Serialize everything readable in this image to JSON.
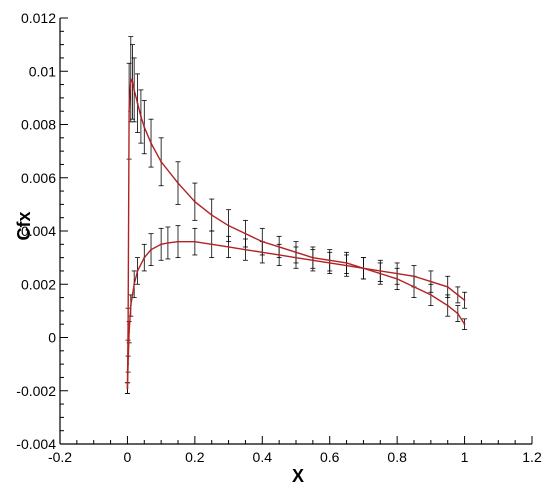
{
  "chart_data": {
    "type": "line",
    "title": "",
    "xlabel": "X",
    "ylabel": "Cfx",
    "xlim": [
      -0.2,
      1.2
    ],
    "ylim": [
      -0.004,
      0.012
    ],
    "xticks": [
      "-0.2",
      "0",
      "0.2",
      "0.4",
      "0.6",
      "0.8",
      "1",
      "1.2"
    ],
    "yticks": [
      "-0.004",
      "-0.002",
      "0",
      "0.002",
      "0.004",
      "0.006",
      "0.008",
      "0.01",
      "0.012"
    ],
    "grid": false,
    "legend": "none",
    "colors": {
      "line": "#b22222",
      "error_bar": "#000000"
    },
    "series": [
      {
        "x": [
          0.0,
          0.002,
          0.005,
          0.01,
          0.015,
          0.02,
          0.03,
          0.04,
          0.05,
          0.07,
          0.1,
          0.15,
          0.2,
          0.25,
          0.3,
          0.35,
          0.4,
          0.45,
          0.5,
          0.55,
          0.6,
          0.65,
          0.7,
          0.75,
          0.8,
          0.85,
          0.9,
          0.95,
          0.98,
          1.0
        ],
        "y": [
          -0.0019,
          0.0005,
          0.0085,
          0.0097,
          0.0096,
          0.0093,
          0.0088,
          0.0083,
          0.0079,
          0.0073,
          0.0066,
          0.0058,
          0.0051,
          0.0046,
          0.0042,
          0.0039,
          0.0036,
          0.0034,
          0.0032,
          0.003,
          0.0029,
          0.0028,
          0.0026,
          0.0025,
          0.0024,
          0.0023,
          0.0021,
          0.0019,
          0.0016,
          0.0014
        ],
        "error": [
          0.0002,
          0.0006,
          0.0018,
          0.0016,
          0.0014,
          0.0012,
          0.0011,
          0.001,
          0.001,
          0.0009,
          0.0009,
          0.0008,
          0.0007,
          0.0006,
          0.0006,
          0.0005,
          0.0005,
          0.0004,
          0.0004,
          0.0004,
          0.0004,
          0.0004,
          0.0004,
          0.0004,
          0.0004,
          0.0004,
          0.0004,
          0.0004,
          0.0003,
          0.0003
        ]
      },
      {
        "x": [
          0.0,
          0.002,
          0.005,
          0.01,
          0.02,
          0.03,
          0.05,
          0.07,
          0.1,
          0.12,
          0.15,
          0.2,
          0.25,
          0.3,
          0.35,
          0.4,
          0.45,
          0.5,
          0.55,
          0.6,
          0.65,
          0.7,
          0.75,
          0.8,
          0.85,
          0.9,
          0.95,
          0.98,
          1.0
        ],
        "y": [
          -0.0019,
          -0.001,
          0.0002,
          0.0012,
          0.002,
          0.0025,
          0.003,
          0.0033,
          0.0035,
          0.00355,
          0.0036,
          0.0036,
          0.0035,
          0.0034,
          0.0033,
          0.0032,
          0.0031,
          0.003,
          0.0029,
          0.0028,
          0.0027,
          0.0026,
          0.0024,
          0.0022,
          0.0019,
          0.0016,
          0.0012,
          0.0009,
          0.0005
        ],
        "error": [
          0.0002,
          0.0003,
          0.0004,
          0.0004,
          0.0005,
          0.0005,
          0.0005,
          0.0006,
          0.0006,
          0.0006,
          0.0006,
          0.0005,
          0.0005,
          0.0004,
          0.0004,
          0.0004,
          0.0004,
          0.0004,
          0.0004,
          0.0004,
          0.0004,
          0.0004,
          0.0004,
          0.0004,
          0.0004,
          0.0004,
          0.0004,
          0.0003,
          0.0002
        ]
      }
    ]
  }
}
